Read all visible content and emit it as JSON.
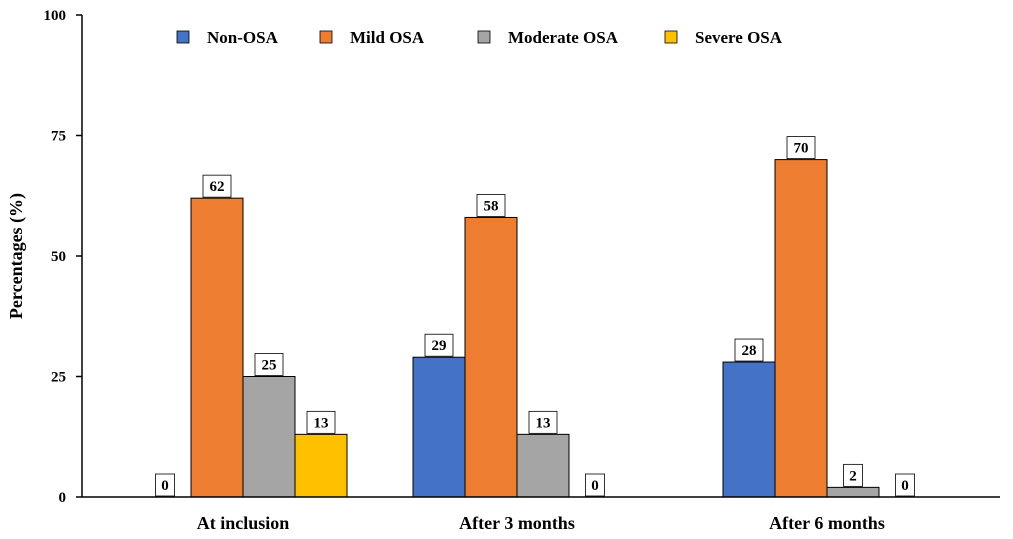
{
  "chart_data": {
    "type": "bar",
    "title": "",
    "xlabel": "",
    "ylabel": "Percentages (%)",
    "ylim": [
      0,
      100
    ],
    "yticks": [
      0,
      25,
      50,
      75,
      100
    ],
    "grid": false,
    "legend_position": "top",
    "categories": [
      "At inclusion",
      "After 3 months",
      "After 6 months"
    ],
    "series": [
      {
        "name": "Non-OSA",
        "color": "#4472C4",
        "values": [
          0,
          29,
          28
        ]
      },
      {
        "name": "Mild OSA",
        "color": "#ED7D31",
        "values": [
          62,
          58,
          70
        ]
      },
      {
        "name": "Moderate OSA",
        "color": "#A5A5A5",
        "values": [
          25,
          13,
          2
        ]
      },
      {
        "name": "Severe OSA",
        "color": "#FFC000",
        "values": [
          13,
          0,
          0
        ]
      }
    ]
  }
}
